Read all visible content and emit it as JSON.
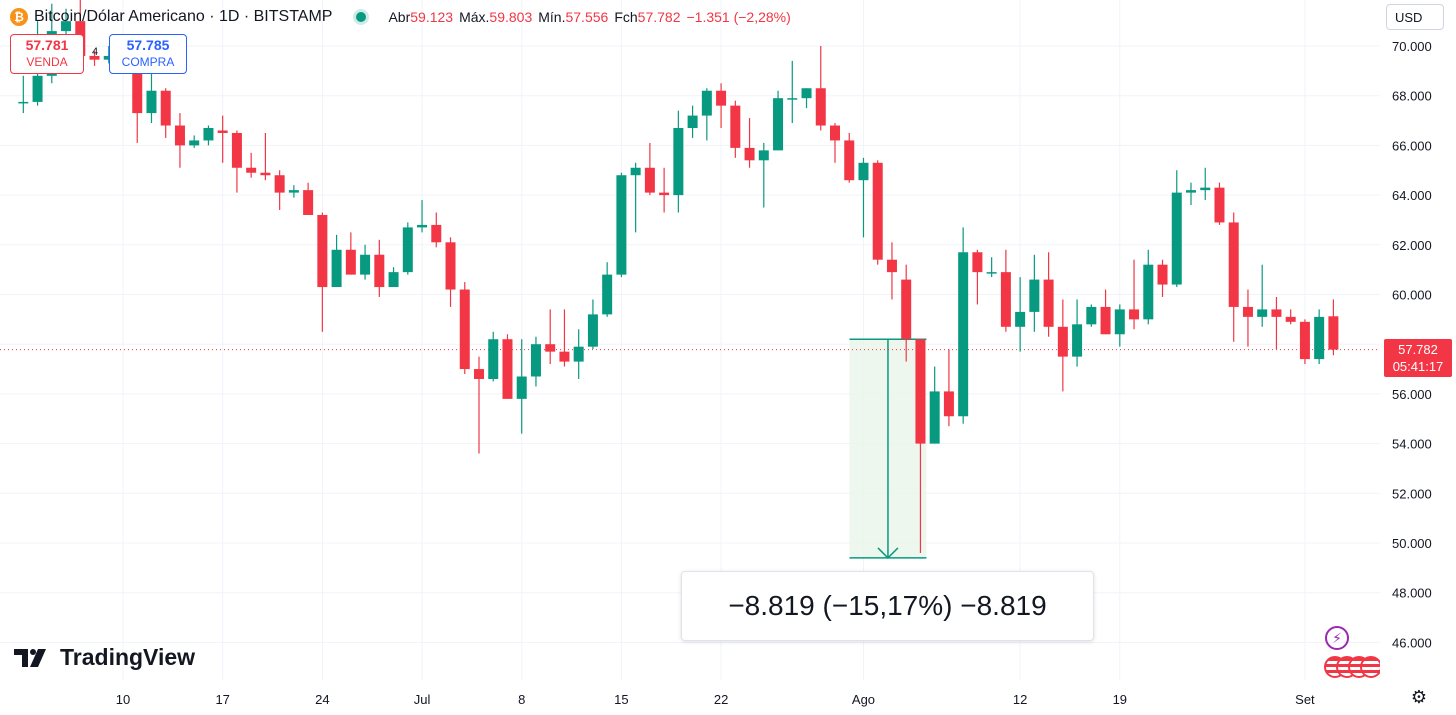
{
  "header": {
    "coin_icon": "bitcoin-coin-icon",
    "symbol_title": "Bitcoin/Dólar Americano · 1D · BITSTAMP",
    "ohlc": {
      "open_label": "Abr",
      "open": "59.123",
      "high_label": "Máx.",
      "high": "59.803",
      "low_label": "Mín.",
      "low": "57.556",
      "close_label": "Fch",
      "close": "57.782",
      "change": "−1.351 (−2,28%)"
    }
  },
  "trade": {
    "sell_price": "57.781",
    "sell_label": "VENDA",
    "spread": "4",
    "buy_price": "57.785",
    "buy_label": "COMPRA"
  },
  "currency_selector": "USD",
  "last_price": {
    "price": "57.782",
    "countdown": "05:41:17"
  },
  "measure_label": "−8.819 (−15,17%) −8.819",
  "brand": "TradingView",
  "colors": {
    "up": "#089981",
    "down": "#f23645",
    "grid": "#f0f3fa",
    "measure_fill": "#e8f5e9"
  },
  "chart_data": {
    "type": "candlestick",
    "y_axis": {
      "range": [
        45000,
        71000
      ],
      "ticks": [
        46000,
        48000,
        50000,
        52000,
        54000,
        56000,
        58000,
        60000,
        62000,
        64000,
        66000,
        68000,
        70000
      ],
      "tick_labels": [
        "46.000",
        "48.000",
        "50.000",
        "52.000",
        "54.000",
        "56.000",
        "58.000",
        "60.000",
        "62.000",
        "64.000",
        "66.000",
        "68.000",
        "70.000"
      ]
    },
    "x_axis": {
      "tick_labels": [
        "10",
        "17",
        "24",
        "Jul",
        "8",
        "15",
        "22",
        "Ago",
        "12",
        "19",
        "Set"
      ],
      "tick_dates": [
        "2024-06-10",
        "2024-06-17",
        "2024-06-24",
        "2024-07-01",
        "2024-07-08",
        "2024-07-15",
        "2024-07-22",
        "2024-08-01",
        "2024-08-12",
        "2024-08-19",
        "2024-09-01"
      ]
    },
    "grid": true,
    "last_price_line": 57782,
    "measure": {
      "from": 58200,
      "to": 49400,
      "change": -8819,
      "percent": -15.17,
      "start_date": "2024-08-01",
      "end_date": "2024-08-05"
    },
    "candles": [
      {
        "date": "2024-06-03",
        "o": 67750,
        "h": 68800,
        "l": 67300,
        "c": 67750
      },
      {
        "date": "2024-06-04",
        "o": 67750,
        "h": 71000,
        "l": 67600,
        "c": 68800
      },
      {
        "date": "2024-06-05",
        "o": 68800,
        "h": 71700,
        "l": 68500,
        "c": 70600
      },
      {
        "date": "2024-06-06",
        "o": 70600,
        "h": 71500,
        "l": 70100,
        "c": 71000
      },
      {
        "date": "2024-06-07",
        "o": 71000,
        "h": 71900,
        "l": 69500,
        "c": 69600
      },
      {
        "date": "2024-06-08",
        "o": 69600,
        "h": 69800,
        "l": 69200,
        "c": 69450
      },
      {
        "date": "2024-06-09",
        "o": 69450,
        "h": 70000,
        "l": 69300,
        "c": 69600
      },
      {
        "date": "2024-06-10",
        "o": 69600,
        "h": 70100,
        "l": 69000,
        "c": 69500
      },
      {
        "date": "2024-06-11",
        "o": 69500,
        "h": 69600,
        "l": 66100,
        "c": 67300
      },
      {
        "date": "2024-06-12",
        "o": 67300,
        "h": 69900,
        "l": 66900,
        "c": 68200
      },
      {
        "date": "2024-06-13",
        "o": 68200,
        "h": 68300,
        "l": 66300,
        "c": 66800
      },
      {
        "date": "2024-06-14",
        "o": 66800,
        "h": 67300,
        "l": 65100,
        "c": 66000
      },
      {
        "date": "2024-06-15",
        "o": 66000,
        "h": 66400,
        "l": 65900,
        "c": 66200
      },
      {
        "date": "2024-06-16",
        "o": 66200,
        "h": 66800,
        "l": 66000,
        "c": 66700
      },
      {
        "date": "2024-06-17",
        "o": 66600,
        "h": 67200,
        "l": 65300,
        "c": 66500
      },
      {
        "date": "2024-06-18",
        "o": 66500,
        "h": 66600,
        "l": 64100,
        "c": 65100
      },
      {
        "date": "2024-06-19",
        "o": 65100,
        "h": 65700,
        "l": 64700,
        "c": 64900
      },
      {
        "date": "2024-06-20",
        "o": 64900,
        "h": 66500,
        "l": 64600,
        "c": 64800
      },
      {
        "date": "2024-06-21",
        "o": 64800,
        "h": 65000,
        "l": 63400,
        "c": 64100
      },
      {
        "date": "2024-06-22",
        "o": 64100,
        "h": 64400,
        "l": 63900,
        "c": 64200
      },
      {
        "date": "2024-06-23",
        "o": 64200,
        "h": 64500,
        "l": 63300,
        "c": 63200
      },
      {
        "date": "2024-06-24",
        "o": 63200,
        "h": 63300,
        "l": 58500,
        "c": 60300
      },
      {
        "date": "2024-06-25",
        "o": 60300,
        "h": 62400,
        "l": 60300,
        "c": 61800
      },
      {
        "date": "2024-06-26",
        "o": 61800,
        "h": 62500,
        "l": 60800,
        "c": 60800
      },
      {
        "date": "2024-06-27",
        "o": 60800,
        "h": 62000,
        "l": 60600,
        "c": 61600
      },
      {
        "date": "2024-06-28",
        "o": 61600,
        "h": 62200,
        "l": 59900,
        "c": 60300
      },
      {
        "date": "2024-06-29",
        "o": 60300,
        "h": 61100,
        "l": 60300,
        "c": 60900
      },
      {
        "date": "2024-06-30",
        "o": 60900,
        "h": 62900,
        "l": 60800,
        "c": 62700
      },
      {
        "date": "2024-07-01",
        "o": 62700,
        "h": 63800,
        "l": 62500,
        "c": 62800
      },
      {
        "date": "2024-07-02",
        "o": 62800,
        "h": 63300,
        "l": 61900,
        "c": 62100
      },
      {
        "date": "2024-07-03",
        "o": 62100,
        "h": 62300,
        "l": 59500,
        "c": 60200
      },
      {
        "date": "2024-07-04",
        "o": 60200,
        "h": 60500,
        "l": 56800,
        "c": 57000
      },
      {
        "date": "2024-07-05",
        "o": 57000,
        "h": 57500,
        "l": 53600,
        "c": 56600
      },
      {
        "date": "2024-07-06",
        "o": 56600,
        "h": 58500,
        "l": 56500,
        "c": 58200
      },
      {
        "date": "2024-07-07",
        "o": 58200,
        "h": 58400,
        "l": 55800,
        "c": 55800
      },
      {
        "date": "2024-07-08",
        "o": 55800,
        "h": 58200,
        "l": 54400,
        "c": 56700
      },
      {
        "date": "2024-07-09",
        "o": 56700,
        "h": 58300,
        "l": 56300,
        "c": 58000
      },
      {
        "date": "2024-07-10",
        "o": 58000,
        "h": 59400,
        "l": 57200,
        "c": 57700
      },
      {
        "date": "2024-07-11",
        "o": 57700,
        "h": 59400,
        "l": 57100,
        "c": 57300
      },
      {
        "date": "2024-07-12",
        "o": 57300,
        "h": 58600,
        "l": 56600,
        "c": 57900
      },
      {
        "date": "2024-07-13",
        "o": 57900,
        "h": 59800,
        "l": 57800,
        "c": 59200
      },
      {
        "date": "2024-07-14",
        "o": 59200,
        "h": 61300,
        "l": 59100,
        "c": 60800
      },
      {
        "date": "2024-07-15",
        "o": 60800,
        "h": 64900,
        "l": 60700,
        "c": 64800
      },
      {
        "date": "2024-07-16",
        "o": 64800,
        "h": 65300,
        "l": 62500,
        "c": 65100
      },
      {
        "date": "2024-07-17",
        "o": 65100,
        "h": 66100,
        "l": 64000,
        "c": 64100
      },
      {
        "date": "2024-07-18",
        "o": 64100,
        "h": 65100,
        "l": 63300,
        "c": 64000
      },
      {
        "date": "2024-07-19",
        "o": 64000,
        "h": 67400,
        "l": 63300,
        "c": 66700
      },
      {
        "date": "2024-07-20",
        "o": 66700,
        "h": 67600,
        "l": 66300,
        "c": 67200
      },
      {
        "date": "2024-07-21",
        "o": 67200,
        "h": 68300,
        "l": 66200,
        "c": 68200
      },
      {
        "date": "2024-07-22",
        "o": 68200,
        "h": 68500,
        "l": 66700,
        "c": 67600
      },
      {
        "date": "2024-07-23",
        "o": 67600,
        "h": 67800,
        "l": 65500,
        "c": 65900
      },
      {
        "date": "2024-07-24",
        "o": 65900,
        "h": 67100,
        "l": 65100,
        "c": 65400
      },
      {
        "date": "2024-07-25",
        "o": 65400,
        "h": 66100,
        "l": 63500,
        "c": 65800
      },
      {
        "date": "2024-07-26",
        "o": 65800,
        "h": 68200,
        "l": 65800,
        "c": 67900
      },
      {
        "date": "2024-07-27",
        "o": 67900,
        "h": 69400,
        "l": 66900,
        "c": 67900
      },
      {
        "date": "2024-07-28",
        "o": 67900,
        "h": 68300,
        "l": 67500,
        "c": 68300
      },
      {
        "date": "2024-07-29",
        "o": 68300,
        "h": 70000,
        "l": 66600,
        "c": 66800
      },
      {
        "date": "2024-07-30",
        "o": 66800,
        "h": 66900,
        "l": 65300,
        "c": 66200
      },
      {
        "date": "2024-07-31",
        "o": 66200,
        "h": 66500,
        "l": 64500,
        "c": 64600
      },
      {
        "date": "2024-08-01",
        "o": 64600,
        "h": 65500,
        "l": 62300,
        "c": 65300
      },
      {
        "date": "2024-08-02",
        "o": 65300,
        "h": 65400,
        "l": 61200,
        "c": 61400
      },
      {
        "date": "2024-08-03",
        "o": 61400,
        "h": 62100,
        "l": 59800,
        "c": 60900
      },
      {
        "date": "2024-08-04",
        "o": 60600,
        "h": 61200,
        "l": 57300,
        "c": 58200
      },
      {
        "date": "2024-08-05",
        "o": 58200,
        "h": 58200,
        "l": 49600,
        "c": 54000
      },
      {
        "date": "2024-08-06",
        "o": 54000,
        "h": 57100,
        "l": 54000,
        "c": 56100
      },
      {
        "date": "2024-08-07",
        "o": 56100,
        "h": 57800,
        "l": 54700,
        "c": 55100
      },
      {
        "date": "2024-08-08",
        "o": 55100,
        "h": 62700,
        "l": 54800,
        "c": 61700
      },
      {
        "date": "2024-08-09",
        "o": 61700,
        "h": 61800,
        "l": 59600,
        "c": 60900
      },
      {
        "date": "2024-08-10",
        "o": 60900,
        "h": 61500,
        "l": 60700,
        "c": 60900
      },
      {
        "date": "2024-08-11",
        "o": 60900,
        "h": 61800,
        "l": 58500,
        "c": 58700
      },
      {
        "date": "2024-08-12",
        "o": 58700,
        "h": 60700,
        "l": 57700,
        "c": 59300
      },
      {
        "date": "2024-08-13",
        "o": 59300,
        "h": 61600,
        "l": 58500,
        "c": 60600
      },
      {
        "date": "2024-08-14",
        "o": 60600,
        "h": 61700,
        "l": 58300,
        "c": 58700
      },
      {
        "date": "2024-08-15",
        "o": 58700,
        "h": 59800,
        "l": 56100,
        "c": 57500
      },
      {
        "date": "2024-08-16",
        "o": 57500,
        "h": 59800,
        "l": 57100,
        "c": 58800
      },
      {
        "date": "2024-08-17",
        "o": 58800,
        "h": 59600,
        "l": 58700,
        "c": 59500
      },
      {
        "date": "2024-08-18",
        "o": 59500,
        "h": 60200,
        "l": 58400,
        "c": 58400
      },
      {
        "date": "2024-08-19",
        "o": 58400,
        "h": 59600,
        "l": 57900,
        "c": 59400
      },
      {
        "date": "2024-08-20",
        "o": 59400,
        "h": 61400,
        "l": 58600,
        "c": 59000
      },
      {
        "date": "2024-08-21",
        "o": 59000,
        "h": 61800,
        "l": 58800,
        "c": 61200
      },
      {
        "date": "2024-08-22",
        "o": 61200,
        "h": 61400,
        "l": 59900,
        "c": 60400
      },
      {
        "date": "2024-08-23",
        "o": 60400,
        "h": 65000,
        "l": 60300,
        "c": 64100
      },
      {
        "date": "2024-08-24",
        "o": 64100,
        "h": 64500,
        "l": 63600,
        "c": 64200
      },
      {
        "date": "2024-08-25",
        "o": 64200,
        "h": 65100,
        "l": 63800,
        "c": 64300
      },
      {
        "date": "2024-08-26",
        "o": 64300,
        "h": 64500,
        "l": 62800,
        "c": 62900
      },
      {
        "date": "2024-08-27",
        "o": 62900,
        "h": 63300,
        "l": 58100,
        "c": 59500
      },
      {
        "date": "2024-08-28",
        "o": 59500,
        "h": 60200,
        "l": 57900,
        "c": 59100
      },
      {
        "date": "2024-08-29",
        "o": 59100,
        "h": 61200,
        "l": 58700,
        "c": 59400
      },
      {
        "date": "2024-08-30",
        "o": 59400,
        "h": 59900,
        "l": 57800,
        "c": 59100
      },
      {
        "date": "2024-08-31",
        "o": 59100,
        "h": 59400,
        "l": 58800,
        "c": 58900
      },
      {
        "date": "2024-09-01",
        "o": 58900,
        "h": 59000,
        "l": 57200,
        "c": 57400
      },
      {
        "date": "2024-09-02",
        "o": 57400,
        "h": 59400,
        "l": 57200,
        "c": 59100
      },
      {
        "date": "2024-09-03",
        "o": 59123,
        "h": 59803,
        "l": 57556,
        "c": 57782
      }
    ]
  }
}
